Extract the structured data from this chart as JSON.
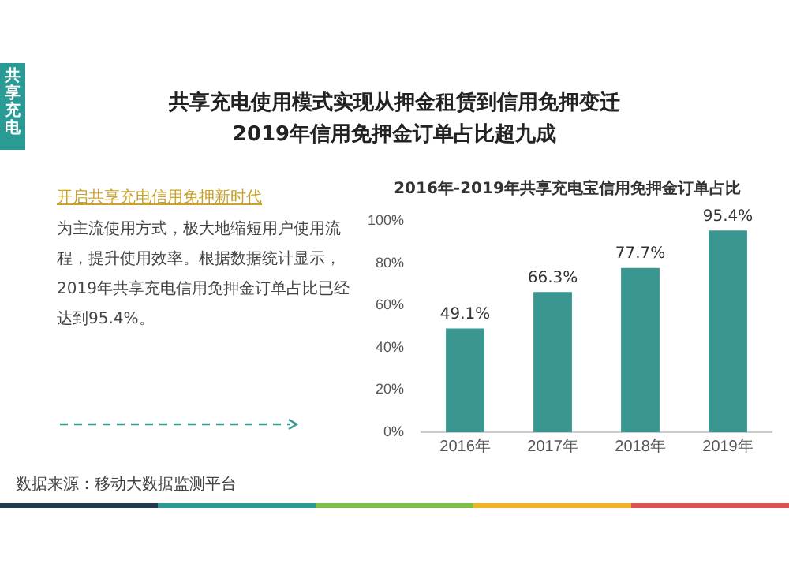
{
  "chart_data": {
    "type": "bar",
    "title": "共享充电使用模式实现从押金租赁到信用免押变迁",
    "subtitle": "2019年信用免押金订单占比超九成",
    "annotations": [
      "共享充电",
      "2016年-2019年共享充电宝信用免押金订单占比",
      "开启共享充电信用免押新时代",
      "为主流使用方式，极大地缩短用户使用流程，提升使用效率。根据数据统计显示，2019年共享充电信用免押金订单占比已经达到95.4%。",
      "数据来源：移动大数据监测平台"
    ],
    "categories": [
      "2016年",
      "2017年",
      "2018年",
      "2019年"
    ],
    "values": [
      49.1,
      66.3,
      77.7,
      95.4
    ],
    "color": "#3a9690",
    "value_labels": [
      "49.1%",
      "66.3%",
      "77.7%",
      "95.4%"
    ],
    "ylim": [
      0,
      100
    ],
    "yticks": [
      {
        "value": 0,
        "label": "0%"
      },
      {
        "value": 20,
        "label": "20%"
      },
      {
        "value": 40,
        "label": "40%"
      },
      {
        "value": 60,
        "label": "60%"
      },
      {
        "value": 80,
        "label": "80%"
      },
      {
        "value": 100,
        "label": "100%"
      }
    ],
    "grid": false,
    "legend": false
  }
}
